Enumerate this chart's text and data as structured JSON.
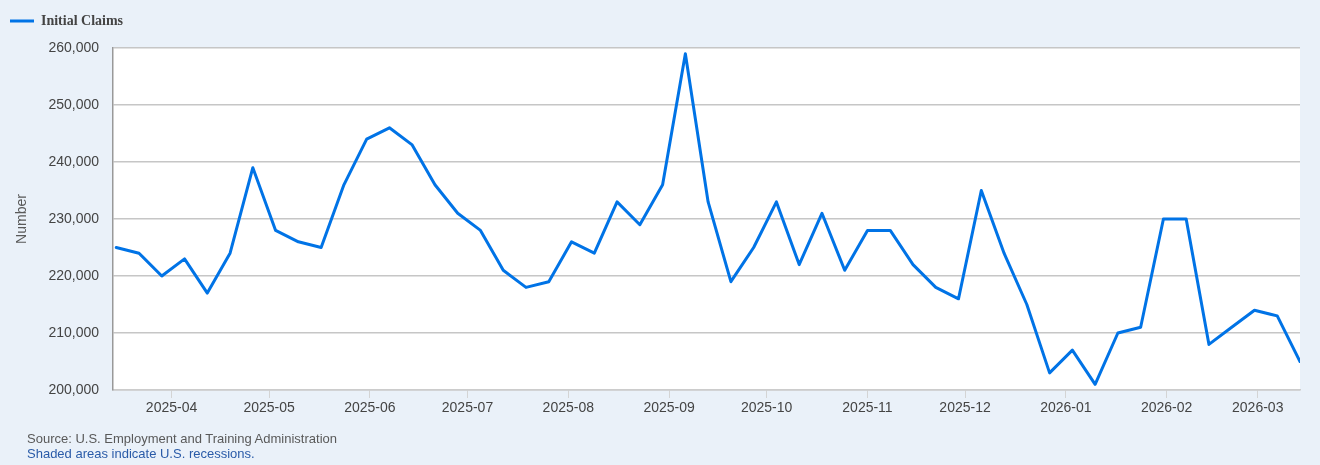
{
  "chart_data": {
    "type": "line",
    "x": [
      "2025-03-15",
      "2025-03-22",
      "2025-03-29",
      "2025-04-05",
      "2025-04-12",
      "2025-04-19",
      "2025-04-26",
      "2025-05-03",
      "2025-05-10",
      "2025-05-17",
      "2025-05-24",
      "2025-05-31",
      "2025-06-07",
      "2025-06-14",
      "2025-06-21",
      "2025-06-28",
      "2025-07-05",
      "2025-07-12",
      "2025-07-19",
      "2025-07-26",
      "2025-08-02",
      "2025-08-09",
      "2025-08-16",
      "2025-08-23",
      "2025-08-30",
      "2025-09-06",
      "2025-09-13",
      "2025-09-20",
      "2025-09-27",
      "2025-10-04",
      "2025-10-11",
      "2025-10-18",
      "2025-10-25",
      "2025-11-01",
      "2025-11-08",
      "2025-11-15",
      "2025-11-22",
      "2025-11-29",
      "2025-12-06",
      "2025-12-13",
      "2025-12-20",
      "2025-12-27",
      "2026-01-03",
      "2026-01-10",
      "2026-01-17",
      "2026-01-24",
      "2026-01-31",
      "2026-02-07",
      "2026-02-14",
      "2026-02-21",
      "2026-02-28",
      "2026-03-07",
      "2026-03-14"
    ],
    "series": [
      {
        "name": "Initial Claims",
        "color": "#0073e6",
        "values": [
          225000,
          224000,
          220000,
          223000,
          217000,
          224000,
          239000,
          228000,
          226000,
          225000,
          236000,
          244000,
          246000,
          243000,
          236000,
          231000,
          228000,
          221000,
          218000,
          219000,
          226000,
          224000,
          233000,
          229000,
          236000,
          259000,
          233000,
          219000,
          225000,
          233000,
          222000,
          231000,
          221000,
          228000,
          228000,
          222000,
          218000,
          216000,
          235000,
          224000,
          215000,
          203000,
          207000,
          201000,
          210000,
          211000,
          230000,
          230000,
          208000,
          211000,
          214000,
          213000,
          205000
        ]
      }
    ],
    "ylabel": "Number",
    "xlim": [
      "2025-03-14",
      "2026-03-14"
    ],
    "xticks": [
      "2025-04",
      "2025-05",
      "2025-06",
      "2025-07",
      "2025-08",
      "2025-09",
      "2025-10",
      "2025-11",
      "2025-12",
      "2026-01",
      "2026-02",
      "2026-03"
    ],
    "ylim": [
      200000,
      260000
    ],
    "yticks": [
      {
        "value": 200000,
        "label": "200,000"
      },
      {
        "value": 210000,
        "label": "210,000"
      },
      {
        "value": 220000,
        "label": "220,000"
      },
      {
        "value": 230000,
        "label": "230,000"
      },
      {
        "value": 240000,
        "label": "240,000"
      },
      {
        "value": 250000,
        "label": "250,000"
      },
      {
        "value": 260000,
        "label": "260,000"
      }
    ],
    "grid": "y",
    "legend": "top left",
    "marker": "none",
    "line_style": "solid",
    "annotations": [
      "Source: U.S. Employment and Training Administration",
      "Shaded areas indicate U.S. recessions."
    ]
  }
}
